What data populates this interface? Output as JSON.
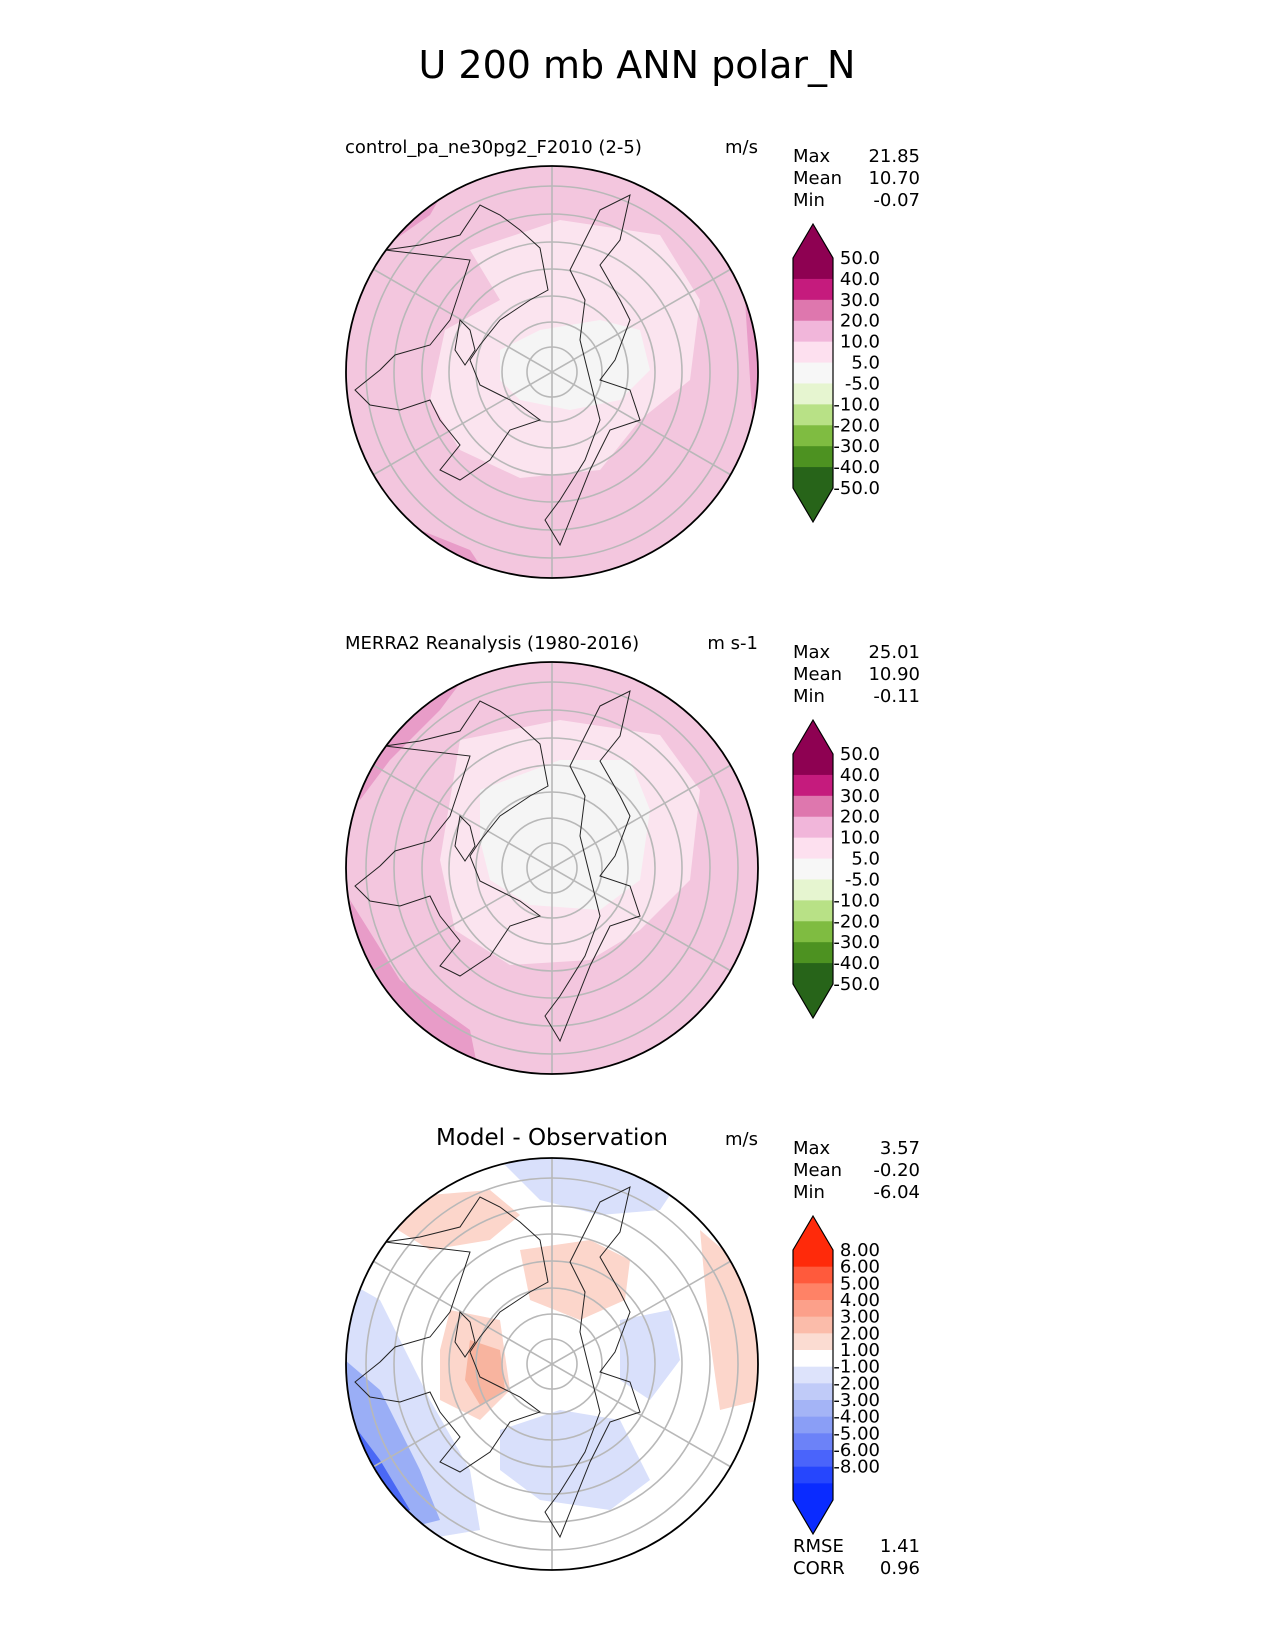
{
  "figure": {
    "title": "U 200 mb ANN polar_N"
  },
  "chart_data": [
    {
      "type": "heatmap",
      "projection": "north-polar-stereographic",
      "title": "control_pa_ne30pg2_F2010 (2-5)",
      "units": "m/s",
      "stats": [
        {
          "label": "Max",
          "value": "21.85"
        },
        {
          "label": "Mean",
          "value": "10.70"
        },
        {
          "label": "Min",
          "value": "-0.07"
        }
      ],
      "colorbar": {
        "levels": [
          "50.0",
          "40.0",
          "30.0",
          "20.0",
          "10.0",
          "5.0",
          "-5.0",
          "-10.0",
          "-20.0",
          "-30.0",
          "-40.0",
          "-50.0"
        ],
        "colors": [
          "#8e0152",
          "#c51b7d",
          "#de77ae",
          "#f1b6da",
          "#fde0ef",
          "#f7f7f7",
          "#e6f5d0",
          "#b8e186",
          "#7fbc41",
          "#4d9221",
          "#276419"
        ],
        "extend_top": "#8e0152",
        "extend_bottom": "#276419"
      },
      "fill_outer": "#f3c6de",
      "fill_mid": "#fbe4ef",
      "fill_core": "#f5f5f5",
      "fill_strong": "#e89cc8"
    },
    {
      "type": "heatmap",
      "projection": "north-polar-stereographic",
      "title": "MERRA2 Reanalysis (1980-2016)",
      "units": "m s-1",
      "stats": [
        {
          "label": "Max",
          "value": "25.01"
        },
        {
          "label": "Mean",
          "value": "10.90"
        },
        {
          "label": "Min",
          "value": "-0.11"
        }
      ],
      "colorbar": {
        "levels": [
          "50.0",
          "40.0",
          "30.0",
          "20.0",
          "10.0",
          "5.0",
          "-5.0",
          "-10.0",
          "-20.0",
          "-30.0",
          "-40.0",
          "-50.0"
        ],
        "colors": [
          "#8e0152",
          "#c51b7d",
          "#de77ae",
          "#f1b6da",
          "#fde0ef",
          "#f7f7f7",
          "#e6f5d0",
          "#b8e186",
          "#7fbc41",
          "#4d9221",
          "#276419"
        ],
        "extend_top": "#8e0152",
        "extend_bottom": "#276419"
      },
      "fill_outer": "#f3c6de",
      "fill_mid": "#fbe4ef",
      "fill_core": "#f5f5f5",
      "fill_strong": "#e89cc8"
    },
    {
      "type": "heatmap",
      "projection": "north-polar-stereographic",
      "title": "Model - Observation",
      "units": "m/s",
      "stats": [
        {
          "label": "Max",
          "value": "3.57"
        },
        {
          "label": "Mean",
          "value": "-0.20"
        },
        {
          "label": "Min",
          "value": "-6.04"
        }
      ],
      "colorbar": {
        "levels": [
          "8.00",
          "6.00",
          "5.00",
          "4.00",
          "3.00",
          "2.00",
          "1.00",
          "-1.00",
          "-2.00",
          "-3.00",
          "-4.00",
          "-5.00",
          "-6.00",
          "-8.00"
        ],
        "colors": [
          "#ff2a0a",
          "#ff5a3c",
          "#ff8266",
          "#fca08a",
          "#fbbcaa",
          "#fbdcd2",
          "#ffffff",
          "#dde3fb",
          "#c0cbf8",
          "#a4b4f6",
          "#8a9ef6",
          "#6c82f8",
          "#4a64fb",
          "#2646fd",
          "#0a2bff"
        ],
        "extend_top": "#ff2a0a",
        "extend_bottom": "#0a2bff"
      },
      "fill_outer": "#ffffff",
      "fill_pos": "#fcd6cb",
      "fill_pos2": "#f8b49f",
      "fill_neg": "#d9e0fb",
      "fill_neg2": "#9aaef6",
      "fill_neg3": "#4a68f5",
      "bottom_stats": [
        {
          "label": "RMSE",
          "value": "1.41"
        },
        {
          "label": "CORR",
          "value": "0.96"
        }
      ]
    }
  ]
}
